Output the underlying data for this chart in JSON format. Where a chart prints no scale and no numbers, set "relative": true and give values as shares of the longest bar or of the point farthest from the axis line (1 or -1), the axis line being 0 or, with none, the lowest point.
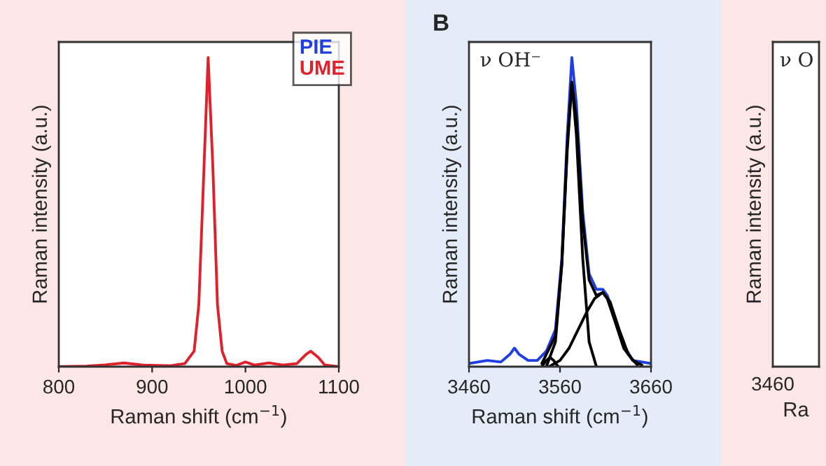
{
  "chart_data": [
    {
      "type": "line",
      "relative": true,
      "xlabel": "Raman shift (cm$^{−1}$)",
      "ylabel": "Raman intensity (a.u.)",
      "xlim": [
        800,
        1100
      ],
      "xticks": [
        800,
        900,
        1000,
        1100
      ],
      "legend": "top right",
      "series": [
        {
          "name": "UME",
          "color": "#e0202a",
          "x": [
            800,
            830,
            850,
            870,
            890,
            920,
            935,
            945,
            950,
            955,
            960,
            965,
            970,
            975,
            980,
            990,
            1000,
            1010,
            1025,
            1040,
            1055,
            1065,
            1070,
            1078,
            1085,
            1100
          ],
          "values": [
            0,
            0.002,
            0.006,
            0.012,
            0.005,
            0.003,
            0.01,
            0.05,
            0.2,
            0.6,
            1.0,
            0.65,
            0.2,
            0.05,
            0.01,
            0.004,
            0.015,
            0.005,
            0.012,
            0.005,
            0.01,
            0.04,
            0.05,
            0.03,
            0.005,
            0
          ]
        }
      ]
    },
    {
      "type": "line",
      "relative": true,
      "title": "B",
      "xlabel": "Raman shift (cm$^{−1}$)",
      "ylabel": "Raman intensity (a.u.)",
      "xlim": [
        3460,
        3660
      ],
      "xticks": [
        3460,
        3560,
        3660
      ],
      "annotations": [
        "ν OH⁻"
      ],
      "series": [
        {
          "name": "PIE",
          "color": "#1f3fe0",
          "x": [
            3460,
            3480,
            3495,
            3505,
            3510,
            3515,
            3525,
            3535,
            3545,
            3555,
            3562,
            3568,
            3573,
            3578,
            3585,
            3592,
            3600,
            3607,
            3612,
            3620,
            3630,
            3640,
            3660
          ],
          "values": [
            0.01,
            0.02,
            0.015,
            0.04,
            0.06,
            0.04,
            0.02,
            0.02,
            0.05,
            0.12,
            0.35,
            0.75,
            1.0,
            0.85,
            0.5,
            0.3,
            0.25,
            0.25,
            0.23,
            0.16,
            0.07,
            0.02,
            0.01
          ]
        },
        {
          "color": "#000000",
          "x": [
            3540,
            3555,
            3562,
            3568,
            3573,
            3578,
            3585,
            3592,
            3600,
            3607,
            3612,
            3620,
            3630,
            3640,
            3650
          ],
          "values": [
            0.01,
            0.1,
            0.33,
            0.72,
            0.92,
            0.8,
            0.47,
            0.28,
            0.23,
            0.24,
            0.22,
            0.15,
            0.06,
            0.02,
            0.005
          ]
        },
        {
          "color": "#000000",
          "x": [
            3540,
            3545,
            3549,
            3553,
            3558
          ],
          "values": [
            0,
            0.02,
            0.03,
            0.02,
            0
          ]
        },
        {
          "color": "#000000",
          "x": [
            3548,
            3560,
            3570,
            3580,
            3590,
            3598,
            3607,
            3615,
            3625,
            3635,
            3645
          ],
          "values": [
            0,
            0.02,
            0.06,
            0.12,
            0.18,
            0.22,
            0.24,
            0.21,
            0.12,
            0.04,
            0.005
          ]
        },
        {
          "color": "#000000",
          "x": [
            3545,
            3555,
            3562,
            3568,
            3573,
            3578,
            3585,
            3592,
            3600
          ],
          "values": [
            0,
            0.08,
            0.33,
            0.7,
            0.92,
            0.75,
            0.35,
            0.08,
            0
          ]
        }
      ]
    },
    {
      "type": "other",
      "xlabel": "Ra",
      "ylabel": "Raman intensity (a.u.)",
      "annotations": [
        "ν O",
        "3460"
      ]
    }
  ]
}
